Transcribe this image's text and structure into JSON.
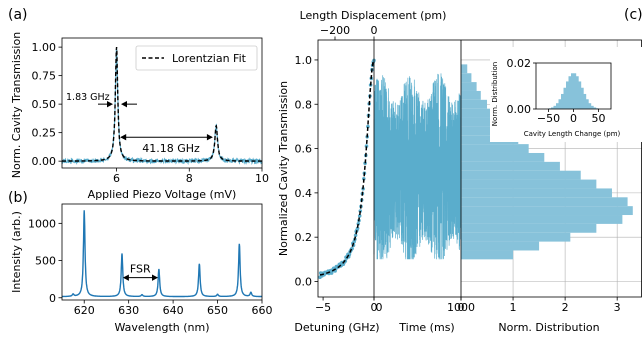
{
  "colors": {
    "trace": "#5aadcc",
    "spectrum": "#1f77b4",
    "hist": "#87c2da",
    "fit": "#000000"
  },
  "panels": {
    "a": {
      "tag": "(a)",
      "chart_data": {
        "type": "line",
        "xlabel": "Applied Piezo Voltage (mV)",
        "ylabel": "Norm. Cavity Transmission",
        "xlim": [
          4.5,
          10
        ],
        "ylim": [
          -0.06,
          1.08
        ],
        "xticks": [
          6,
          8,
          10
        ],
        "yticks": [
          0.0,
          0.25,
          0.5,
          0.75,
          1.0
        ],
        "ytick_labels": [
          "0.00",
          "0.25",
          "0.50",
          "0.75",
          "1.00"
        ],
        "legend": {
          "label": "Lorentzian Fit",
          "placement": "top-right"
        },
        "peaks": [
          {
            "x": 6.0,
            "y": 1.0,
            "fwhm": 0.08
          },
          {
            "x": 8.74,
            "y": 0.31,
            "fwhm": 0.09
          }
        ],
        "annotations": {
          "linewidth": "1.83 GHz",
          "spacing": "41.18 GHz"
        },
        "noise_level": 0.02
      }
    },
    "b": {
      "tag": "(b)",
      "chart_data": {
        "type": "line",
        "xlabel": "Wavelength (nm)",
        "ylabel": "Intensity (arb.)",
        "xlim": [
          615,
          660
        ],
        "ylim": [
          -30,
          1260
        ],
        "xticks": [
          620,
          630,
          640,
          650,
          660
        ],
        "yticks": [
          0,
          500,
          1000
        ],
        "peaks": [
          {
            "x": 620.0,
            "y": 1160
          },
          {
            "x": 628.5,
            "y": 580
          },
          {
            "x": 636.8,
            "y": 370
          },
          {
            "x": 645.9,
            "y": 440
          },
          {
            "x": 654.9,
            "y": 710
          },
          {
            "x": 617.5,
            "y": 30
          },
          {
            "x": 633.0,
            "y": 25
          },
          {
            "x": 650.0,
            "y": 30
          },
          {
            "x": 657.5,
            "y": 55
          }
        ],
        "annotation": "FSR",
        "baseline": 15
      }
    },
    "c": {
      "tag": "(c)",
      "ylabel": "Normalized  Cavity Transmission",
      "ylim": [
        -0.07,
        1.09
      ],
      "yticks": [
        0.0,
        0.2,
        0.4,
        0.6,
        0.8,
        1.0
      ],
      "ytick_labels": [
        "0.0",
        "0.2",
        "0.4",
        "0.6",
        "0.8",
        "1.0"
      ],
      "detuning": {
        "chart_data": {
          "type": "scatter",
          "xlabel": "Detuning (GHz)",
          "xlim": [
            -5.5,
            0
          ],
          "xticks": [
            -5,
            0
          ],
          "xtick_labels": [
            "−5",
            "0"
          ],
          "top_axis": {
            "label": "Length Displacement (pm)",
            "ticks": [
              -200,
              0
            ],
            "tick_labels": [
              "−200",
              "0"
            ]
          },
          "fit": "Lorentzian, half-width 0.92 GHz"
        }
      },
      "time": {
        "chart_data": {
          "type": "line",
          "xlabel": "Time (ms)",
          "xlim": [
            0,
            1000
          ],
          "xticks": [
            0,
            1000
          ],
          "band_upper": 0.99,
          "band_lower": 0.1,
          "mean": 0.5
        }
      },
      "histogram": {
        "chart_data": {
          "type": "bar",
          "xlabel": "Norm. Distribution",
          "xlim": [
            0,
            3.4
          ],
          "xticks": [
            0,
            1,
            2,
            3
          ],
          "bin_edges": [
            0.1,
            0.14,
            0.18,
            0.22,
            0.26,
            0.3,
            0.34,
            0.38,
            0.42,
            0.46,
            0.5,
            0.54,
            0.58,
            0.62,
            0.66,
            0.7,
            0.74,
            0.78,
            0.82,
            0.86,
            0.9,
            0.94,
            0.98
          ],
          "values": [
            1.0,
            1.5,
            2.1,
            2.6,
            3.1,
            3.3,
            3.2,
            2.9,
            2.6,
            2.3,
            1.9,
            1.6,
            1.3,
            1.1,
            0.9,
            0.75,
            0.6,
            0.5,
            0.38,
            0.3,
            0.2,
            0.12
          ],
          "grid": true
        }
      },
      "inset": {
        "chart_data": {
          "type": "bar",
          "xlabel": "Cavity Length Change (pm)",
          "ylabel": "Norm. Distribution",
          "xlim": [
            -75,
            75
          ],
          "ylim": [
            0,
            0.02
          ],
          "xticks": [
            -50,
            0,
            50
          ],
          "xtick_labels": [
            "−50",
            "0",
            "50"
          ],
          "yticks": [
            0.0,
            0.02
          ],
          "ytick_labels": [
            "0.00",
            "0.02"
          ],
          "mean": 0,
          "std": 17,
          "peak": 0.0157
        }
      }
    }
  }
}
